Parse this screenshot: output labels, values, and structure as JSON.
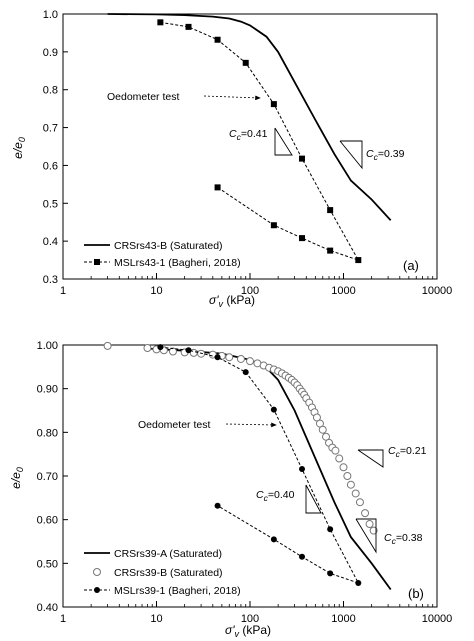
{
  "chart_data": [
    {
      "type": "scatter",
      "panel_label": "(a)",
      "xscale": "log",
      "xlim": [
        1,
        10000
      ],
      "ylim": [
        0.3,
        1.0
      ],
      "x_ticks": [
        1,
        10,
        100,
        1000,
        10000
      ],
      "x_tick_labels": [
        "1",
        "10",
        "100",
        "1000",
        "10000"
      ],
      "y_ticks": [
        0.3,
        0.4,
        0.5,
        0.6,
        0.7,
        0.8,
        0.9,
        1.0
      ],
      "y_tick_labels": [
        "0.3",
        "0.4",
        "0.5",
        "0.6",
        "0.7",
        "0.8",
        "0.9",
        "1.0"
      ],
      "xlabel_main": "σ'",
      "xlabel_sub": "v",
      "xlabel_unit": " (kPa)",
      "ylabel_main": "e/e",
      "ylabel_sub": "0",
      "legend": "bottom-left",
      "grid": false,
      "series": [
        {
          "name": "CRSrs43-B (Saturated)",
          "style": "solid",
          "marker": "none",
          "x": [
            3,
            10,
            20,
            40,
            60,
            80,
            100,
            150,
            200,
            300,
            500,
            800,
            1200,
            2000,
            3200
          ],
          "y": [
            1.0,
            0.999,
            0.997,
            0.993,
            0.988,
            0.98,
            0.97,
            0.94,
            0.9,
            0.82,
            0.72,
            0.63,
            0.56,
            0.51,
            0.455
          ]
        },
        {
          "name": "MSLrs43-1 (Bagheri, 2018)",
          "style": "dashed",
          "marker": "square",
          "x": [
            11,
            22,
            45,
            90,
            180,
            360,
            720,
            1440,
            720,
            360,
            180,
            45
          ],
          "y": [
            0.978,
            0.966,
            0.932,
            0.871,
            0.762,
            0.618,
            0.482,
            0.35,
            0.375,
            0.408,
            0.442,
            0.542
          ]
        }
      ],
      "annotations": [
        {
          "text": "Oedometer test",
          "arrow_to": [
            175,
            0.8
          ]
        },
        {
          "text_main": "C",
          "text_sub": "c",
          "text_val": "=0.41"
        },
        {
          "text_main": "C",
          "text_sub": "c",
          "text_val": "=0.39"
        }
      ]
    },
    {
      "type": "scatter",
      "panel_label": "(b)",
      "xscale": "log",
      "xlim": [
        1,
        10000
      ],
      "ylim": [
        0.4,
        1.0
      ],
      "x_ticks": [
        1,
        10,
        100,
        1000,
        10000
      ],
      "x_tick_labels": [
        "1",
        "10",
        "100",
        "1000",
        "10000"
      ],
      "y_ticks": [
        0.4,
        0.5,
        0.6,
        0.7,
        0.8,
        0.9,
        1.0
      ],
      "y_tick_labels": [
        "0.40",
        "0.50",
        "0.60",
        "0.70",
        "0.80",
        "0.90",
        "1.00"
      ],
      "xlabel_main": "σ'",
      "xlabel_sub": "v",
      "xlabel_unit": " (kPa)",
      "ylabel_main": "e/e",
      "ylabel_sub": "0",
      "legend": "bottom-left",
      "grid": false,
      "series": [
        {
          "name": "CRSrs39-A (Saturated)",
          "style": "solid",
          "marker": "none",
          "x": [
            8,
            20,
            50,
            100,
            150,
            200,
            300,
            500,
            800,
            1200,
            2000,
            3200
          ],
          "y": [
            0.992,
            0.987,
            0.98,
            0.966,
            0.948,
            0.92,
            0.85,
            0.74,
            0.64,
            0.56,
            0.5,
            0.44
          ]
        },
        {
          "name": "CRSrs39-B (Saturated)",
          "style": "none",
          "marker": "open-circle",
          "x": [
            3,
            8,
            10,
            12,
            15,
            20,
            25,
            30,
            40,
            50,
            60,
            80,
            100,
            120,
            140,
            160,
            180,
            200,
            220,
            240,
            260,
            280,
            300,
            320,
            340,
            360,
            380,
            400,
            430,
            460,
            490,
            520,
            560,
            600,
            650,
            700,
            760,
            820,
            900,
            1000,
            1100,
            1200,
            1350,
            1500,
            1700,
            1900,
            2100
          ],
          "y": [
            0.998,
            0.993,
            0.99,
            0.988,
            0.985,
            0.983,
            0.982,
            0.98,
            0.978,
            0.975,
            0.972,
            0.968,
            0.963,
            0.958,
            0.953,
            0.948,
            0.944,
            0.94,
            0.935,
            0.93,
            0.925,
            0.92,
            0.914,
            0.908,
            0.9,
            0.893,
            0.886,
            0.878,
            0.868,
            0.857,
            0.846,
            0.834,
            0.82,
            0.806,
            0.79,
            0.776,
            0.765,
            0.758,
            0.74,
            0.72,
            0.7,
            0.68,
            0.66,
            0.64,
            0.615,
            0.59,
            0.575
          ]
        },
        {
          "name": "MSLrs39-1 (Bagheri, 2018)",
          "style": "dashed",
          "marker": "filled-circle",
          "x": [
            11,
            22,
            45,
            90,
            180,
            360,
            720,
            1440,
            720,
            360,
            180,
            45
          ],
          "y": [
            0.995,
            0.988,
            0.972,
            0.938,
            0.852,
            0.716,
            0.578,
            0.455,
            0.477,
            0.515,
            0.555,
            0.632
          ]
        }
      ],
      "annotations": [
        {
          "text": "Oedometer test",
          "arrow_to": [
            175,
            0.83
          ]
        },
        {
          "text_main": "C",
          "text_sub": "c",
          "text_val": "=0.40"
        },
        {
          "text_main": "C",
          "text_sub": "c",
          "text_val": "=0.21"
        },
        {
          "text_main": "C",
          "text_sub": "c",
          "text_val": "=0.38"
        }
      ]
    }
  ]
}
